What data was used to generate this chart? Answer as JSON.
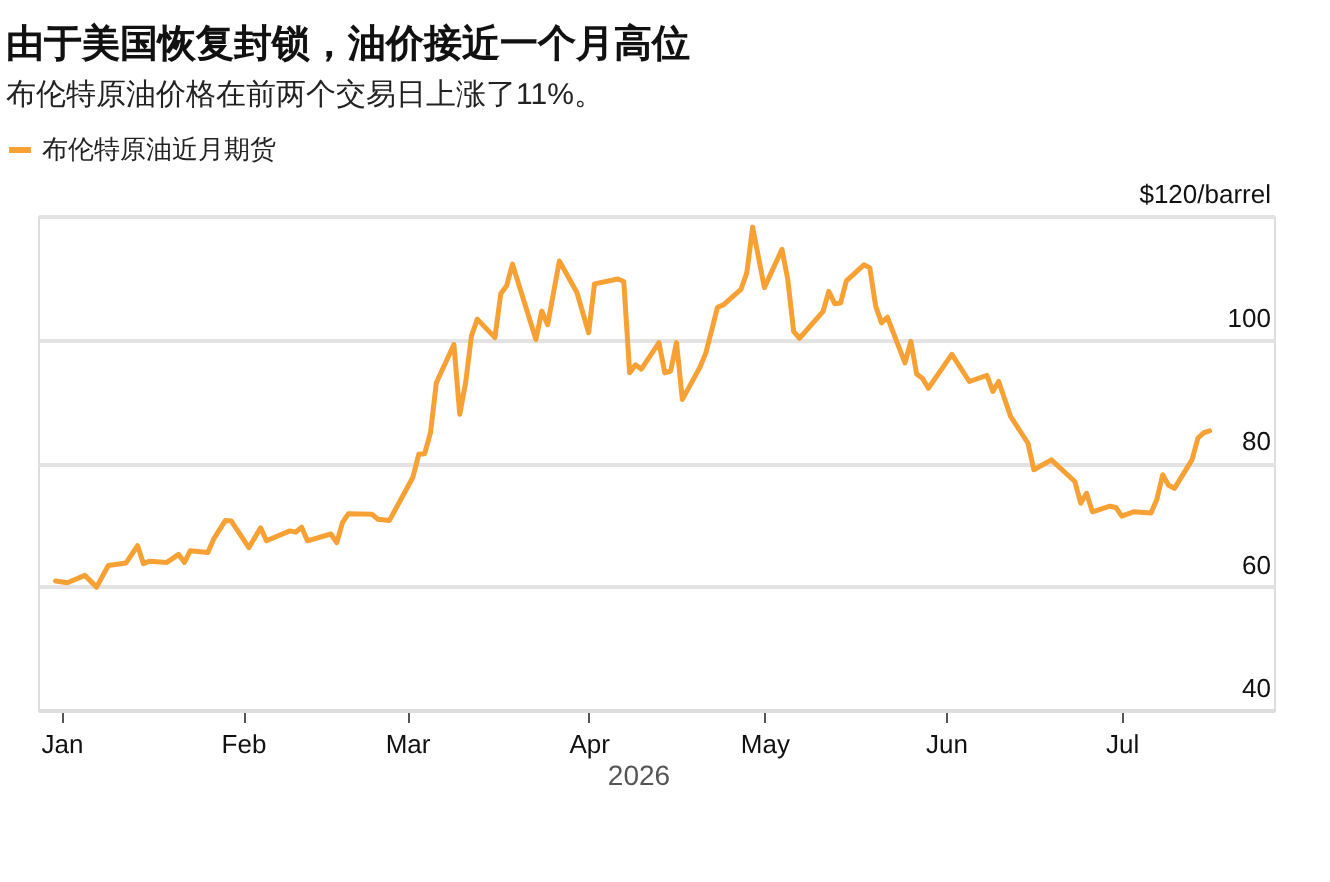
{
  "chart_data": {
    "type": "line",
    "title": "由于美国恢复封锁，油价接近一个月高位",
    "subtitle": "布伦特原油价格在前两个交易日上涨了11%。",
    "xlabel": "2026",
    "x": [
      "2025-12-31",
      "2026-01-02",
      "2026-01-05",
      "2026-01-07",
      "2026-01-09",
      "2026-01-12",
      "2026-01-14",
      "2026-01-15",
      "2026-01-16",
      "2026-01-19",
      "2026-01-21",
      "2026-01-22",
      "2026-01-23",
      "2026-01-26",
      "2026-01-27",
      "2026-01-29",
      "2026-01-30",
      "2026-02-02",
      "2026-02-04",
      "2026-02-05",
      "2026-02-09",
      "2026-02-10",
      "2026-02-11",
      "2026-02-12",
      "2026-02-16",
      "2026-02-17",
      "2026-02-18",
      "2026-02-19",
      "2026-02-23",
      "2026-02-24",
      "2026-02-26",
      "2026-03-02",
      "2026-03-03",
      "2026-03-04",
      "2026-03-05",
      "2026-03-06",
      "2026-03-09",
      "2026-03-10",
      "2026-03-11",
      "2026-03-12",
      "2026-03-13",
      "2026-03-16",
      "2026-03-17",
      "2026-03-18",
      "2026-03-19",
      "2026-03-23",
      "2026-03-24",
      "2026-03-25",
      "2026-03-27",
      "2026-03-30",
      "2026-04-01",
      "2026-04-02",
      "2026-04-06",
      "2026-04-07",
      "2026-04-08",
      "2026-04-09",
      "2026-04-10",
      "2026-04-13",
      "2026-04-14",
      "2026-04-15",
      "2026-04-16",
      "2026-04-17",
      "2026-04-20",
      "2026-04-21",
      "2026-04-23",
      "2026-04-24",
      "2026-04-27",
      "2026-04-28",
      "2026-04-29",
      "2026-05-01",
      "2026-05-04",
      "2026-05-05",
      "2026-05-06",
      "2026-05-07",
      "2026-05-11",
      "2026-05-12",
      "2026-05-13",
      "2026-05-14",
      "2026-05-15",
      "2026-05-18",
      "2026-05-19",
      "2026-05-20",
      "2026-05-21",
      "2026-05-22",
      "2026-05-25",
      "2026-05-26",
      "2026-05-27",
      "2026-05-28",
      "2026-05-29",
      "2026-06-02",
      "2026-06-05",
      "2026-06-08",
      "2026-06-09",
      "2026-06-10",
      "2026-06-12",
      "2026-06-15",
      "2026-06-16",
      "2026-06-19",
      "2026-06-23",
      "2026-06-24",
      "2026-06-25",
      "2026-06-26",
      "2026-06-29",
      "2026-06-30",
      "2026-07-01",
      "2026-07-03",
      "2026-07-06",
      "2026-07-07",
      "2026-07-08",
      "2026-07-09",
      "2026-07-10",
      "2026-07-13",
      "2026-07-14",
      "2026-07-15",
      "2026-07-16"
    ],
    "series": [
      {
        "name": "布伦特原油近月期货",
        "color": "#f7a034",
        "values": [
          60.9,
          60.6,
          61.8,
          59.9,
          63.4,
          63.8,
          66.6,
          63.7,
          64.1,
          63.9,
          65.2,
          63.9,
          65.8,
          65.5,
          67.7,
          70.7,
          70.6,
          66.3,
          69.5,
          67.4,
          69.0,
          68.8,
          69.6,
          67.4,
          68.5,
          67.1,
          70.4,
          71.8,
          71.7,
          70.9,
          70.7,
          77.7,
          81.4,
          81.5,
          84.9,
          93.0,
          99.2,
          87.9,
          93.0,
          100.6,
          103.3,
          100.3,
          107.4,
          108.7,
          112.2,
          100.0,
          104.6,
          102.4,
          112.7,
          107.6,
          101.1,
          109.0,
          109.8,
          109.4,
          94.6,
          95.9,
          95.2,
          99.5,
          94.6,
          94.9,
          99.5,
          90.3,
          95.5,
          97.8,
          105.2,
          105.6,
          108.1,
          110.8,
          118.2,
          108.4,
          114.6,
          109.7,
          101.3,
          100.2,
          104.5,
          107.8,
          105.8,
          105.9,
          109.5,
          112.1,
          111.6,
          105.4,
          102.7,
          103.6,
          96.2,
          99.7,
          94.4,
          93.7,
          92.1,
          97.6,
          93.2,
          94.2,
          91.6,
          93.2,
          87.6,
          83.2,
          78.9,
          80.5,
          77.0,
          73.5,
          75.1,
          72.1,
          73.0,
          72.8,
          71.4,
          72.1,
          71.9,
          74.1,
          78.1,
          76.4,
          75.9,
          80.5,
          84.0,
          84.9,
          85.2
        ]
      }
    ],
    "xlim": [
      "2025-12-28",
      "2026-07-27"
    ],
    "xticks": [
      {
        "value": "2026-01-01",
        "label": "Jan"
      },
      {
        "value": "2026-02-01",
        "label": "Feb"
      },
      {
        "value": "2026-03-01",
        "label": "Mar"
      },
      {
        "value": "2026-04-01",
        "label": "Apr"
      },
      {
        "value": "2026-05-01",
        "label": "May"
      },
      {
        "value": "2026-06-01",
        "label": "Jun"
      },
      {
        "value": "2026-07-01",
        "label": "Jul"
      }
    ],
    "ylim": [
      40,
      120
    ],
    "yticks": [
      40,
      60,
      80,
      100,
      {
        "value": 120,
        "label": "$120/barrel"
      }
    ],
    "grid": "y",
    "legend": "top left",
    "line_style": "solid",
    "marker": "none"
  }
}
